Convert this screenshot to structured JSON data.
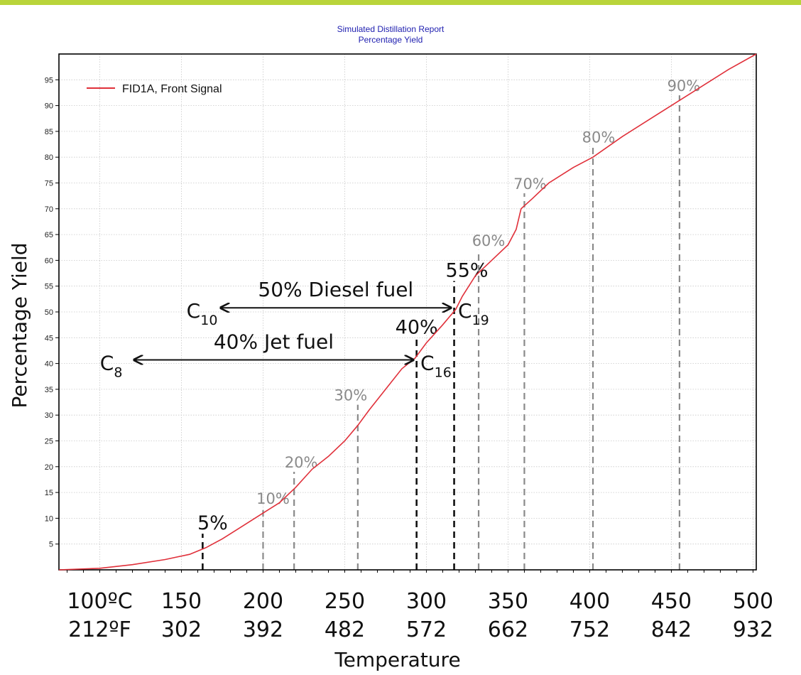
{
  "chart_data": {
    "type": "line",
    "title": "Simulated Distillation Report",
    "subtitle": "Percentage Yield",
    "ylabel": "Percentage Yield",
    "xlabel": "Temperature",
    "xlim": [
      75,
      502
    ],
    "ylim": [
      0,
      100
    ],
    "y_ticks": [
      5,
      10,
      15,
      20,
      25,
      30,
      35,
      40,
      45,
      50,
      55,
      60,
      65,
      70,
      75,
      80,
      85,
      90,
      95
    ],
    "x_ticks": [
      {
        "x": 100,
        "celsius": "100ºC",
        "fahrenheit": "212ºF"
      },
      {
        "x": 150,
        "celsius": "150",
        "fahrenheit": "302"
      },
      {
        "x": 200,
        "celsius": "200",
        "fahrenheit": "392"
      },
      {
        "x": 250,
        "celsius": "250",
        "fahrenheit": "482"
      },
      {
        "x": 300,
        "celsius": "300",
        "fahrenheit": "572"
      },
      {
        "x": 350,
        "celsius": "350",
        "fahrenheit": "662"
      },
      {
        "x": 400,
        "celsius": "400",
        "fahrenheit": "752"
      },
      {
        "x": 450,
        "celsius": "450",
        "fahrenheit": "842"
      },
      {
        "x": 500,
        "celsius": "500",
        "fahrenheit": "932"
      }
    ],
    "grid": true,
    "legend_position": "top-left",
    "series": [
      {
        "name": "FID1A, Front Signal",
        "color": "#e0303a",
        "points": [
          [
            75,
            0
          ],
          [
            100,
            0.3
          ],
          [
            120,
            1
          ],
          [
            140,
            2
          ],
          [
            155,
            3
          ],
          [
            165,
            4.3
          ],
          [
            175,
            6
          ],
          [
            185,
            8
          ],
          [
            200,
            11
          ],
          [
            210,
            13
          ],
          [
            220,
            16
          ],
          [
            230,
            19.5
          ],
          [
            240,
            22
          ],
          [
            250,
            25
          ],
          [
            258,
            28
          ],
          [
            265,
            31
          ],
          [
            275,
            35
          ],
          [
            285,
            39
          ],
          [
            293,
            41
          ],
          [
            300,
            44
          ],
          [
            310,
            47.5
          ],
          [
            318,
            50.5
          ],
          [
            322,
            53
          ],
          [
            330,
            57
          ],
          [
            340,
            60
          ],
          [
            350,
            63
          ],
          [
            355,
            66
          ],
          [
            358,
            70
          ],
          [
            365,
            72
          ],
          [
            375,
            75
          ],
          [
            390,
            78
          ],
          [
            402,
            80
          ],
          [
            420,
            84
          ],
          [
            440,
            88
          ],
          [
            455,
            91
          ],
          [
            470,
            94
          ],
          [
            485,
            97
          ],
          [
            502,
            100
          ]
        ]
      }
    ],
    "cut_lines": [
      {
        "label": "5%",
        "x": 163,
        "y_top": 7,
        "style": "black"
      },
      {
        "label": "10%",
        "x": 200,
        "y_top": 12,
        "style": "gray"
      },
      {
        "label": "20%",
        "x": 219,
        "y_top": 19,
        "style": "gray"
      },
      {
        "label": "30%",
        "x": 258,
        "y_top": 32,
        "style": "gray"
      },
      {
        "label": "40%",
        "x": 294,
        "y_top": 45,
        "style": "black"
      },
      {
        "label": "55%",
        "x": 317,
        "y_top": 56,
        "style": "black"
      },
      {
        "label": "60%",
        "x": 332,
        "y_top": 62,
        "style": "gray"
      },
      {
        "label": "70%",
        "x": 360,
        "y_top": 73,
        "style": "gray"
      },
      {
        "label": "80%",
        "x": 402,
        "y_top": 82,
        "style": "gray"
      },
      {
        "label": "90%",
        "x": 455,
        "y_top": 92,
        "style": "gray"
      }
    ],
    "ranges": [
      {
        "label": "50% Diesel fuel",
        "x_from": 174,
        "x_to": 315,
        "y": 50.8,
        "start_carbon": {
          "base": "C",
          "sub": "10"
        },
        "end_carbon": {
          "base": "C",
          "sub": "19"
        }
      },
      {
        "label": "40% Jet fuel",
        "x_from": 121,
        "x_to": 292,
        "y": 40.7,
        "start_carbon": {
          "base": "C",
          "sub": "8"
        },
        "end_carbon": {
          "base": "C",
          "sub": "16"
        }
      }
    ]
  },
  "colors": {
    "top_bar": "#b9d43a",
    "title": "#2020b0",
    "line": "#e0303a",
    "gray_cut": "#8a8a8a",
    "black_cut": "#111111"
  }
}
